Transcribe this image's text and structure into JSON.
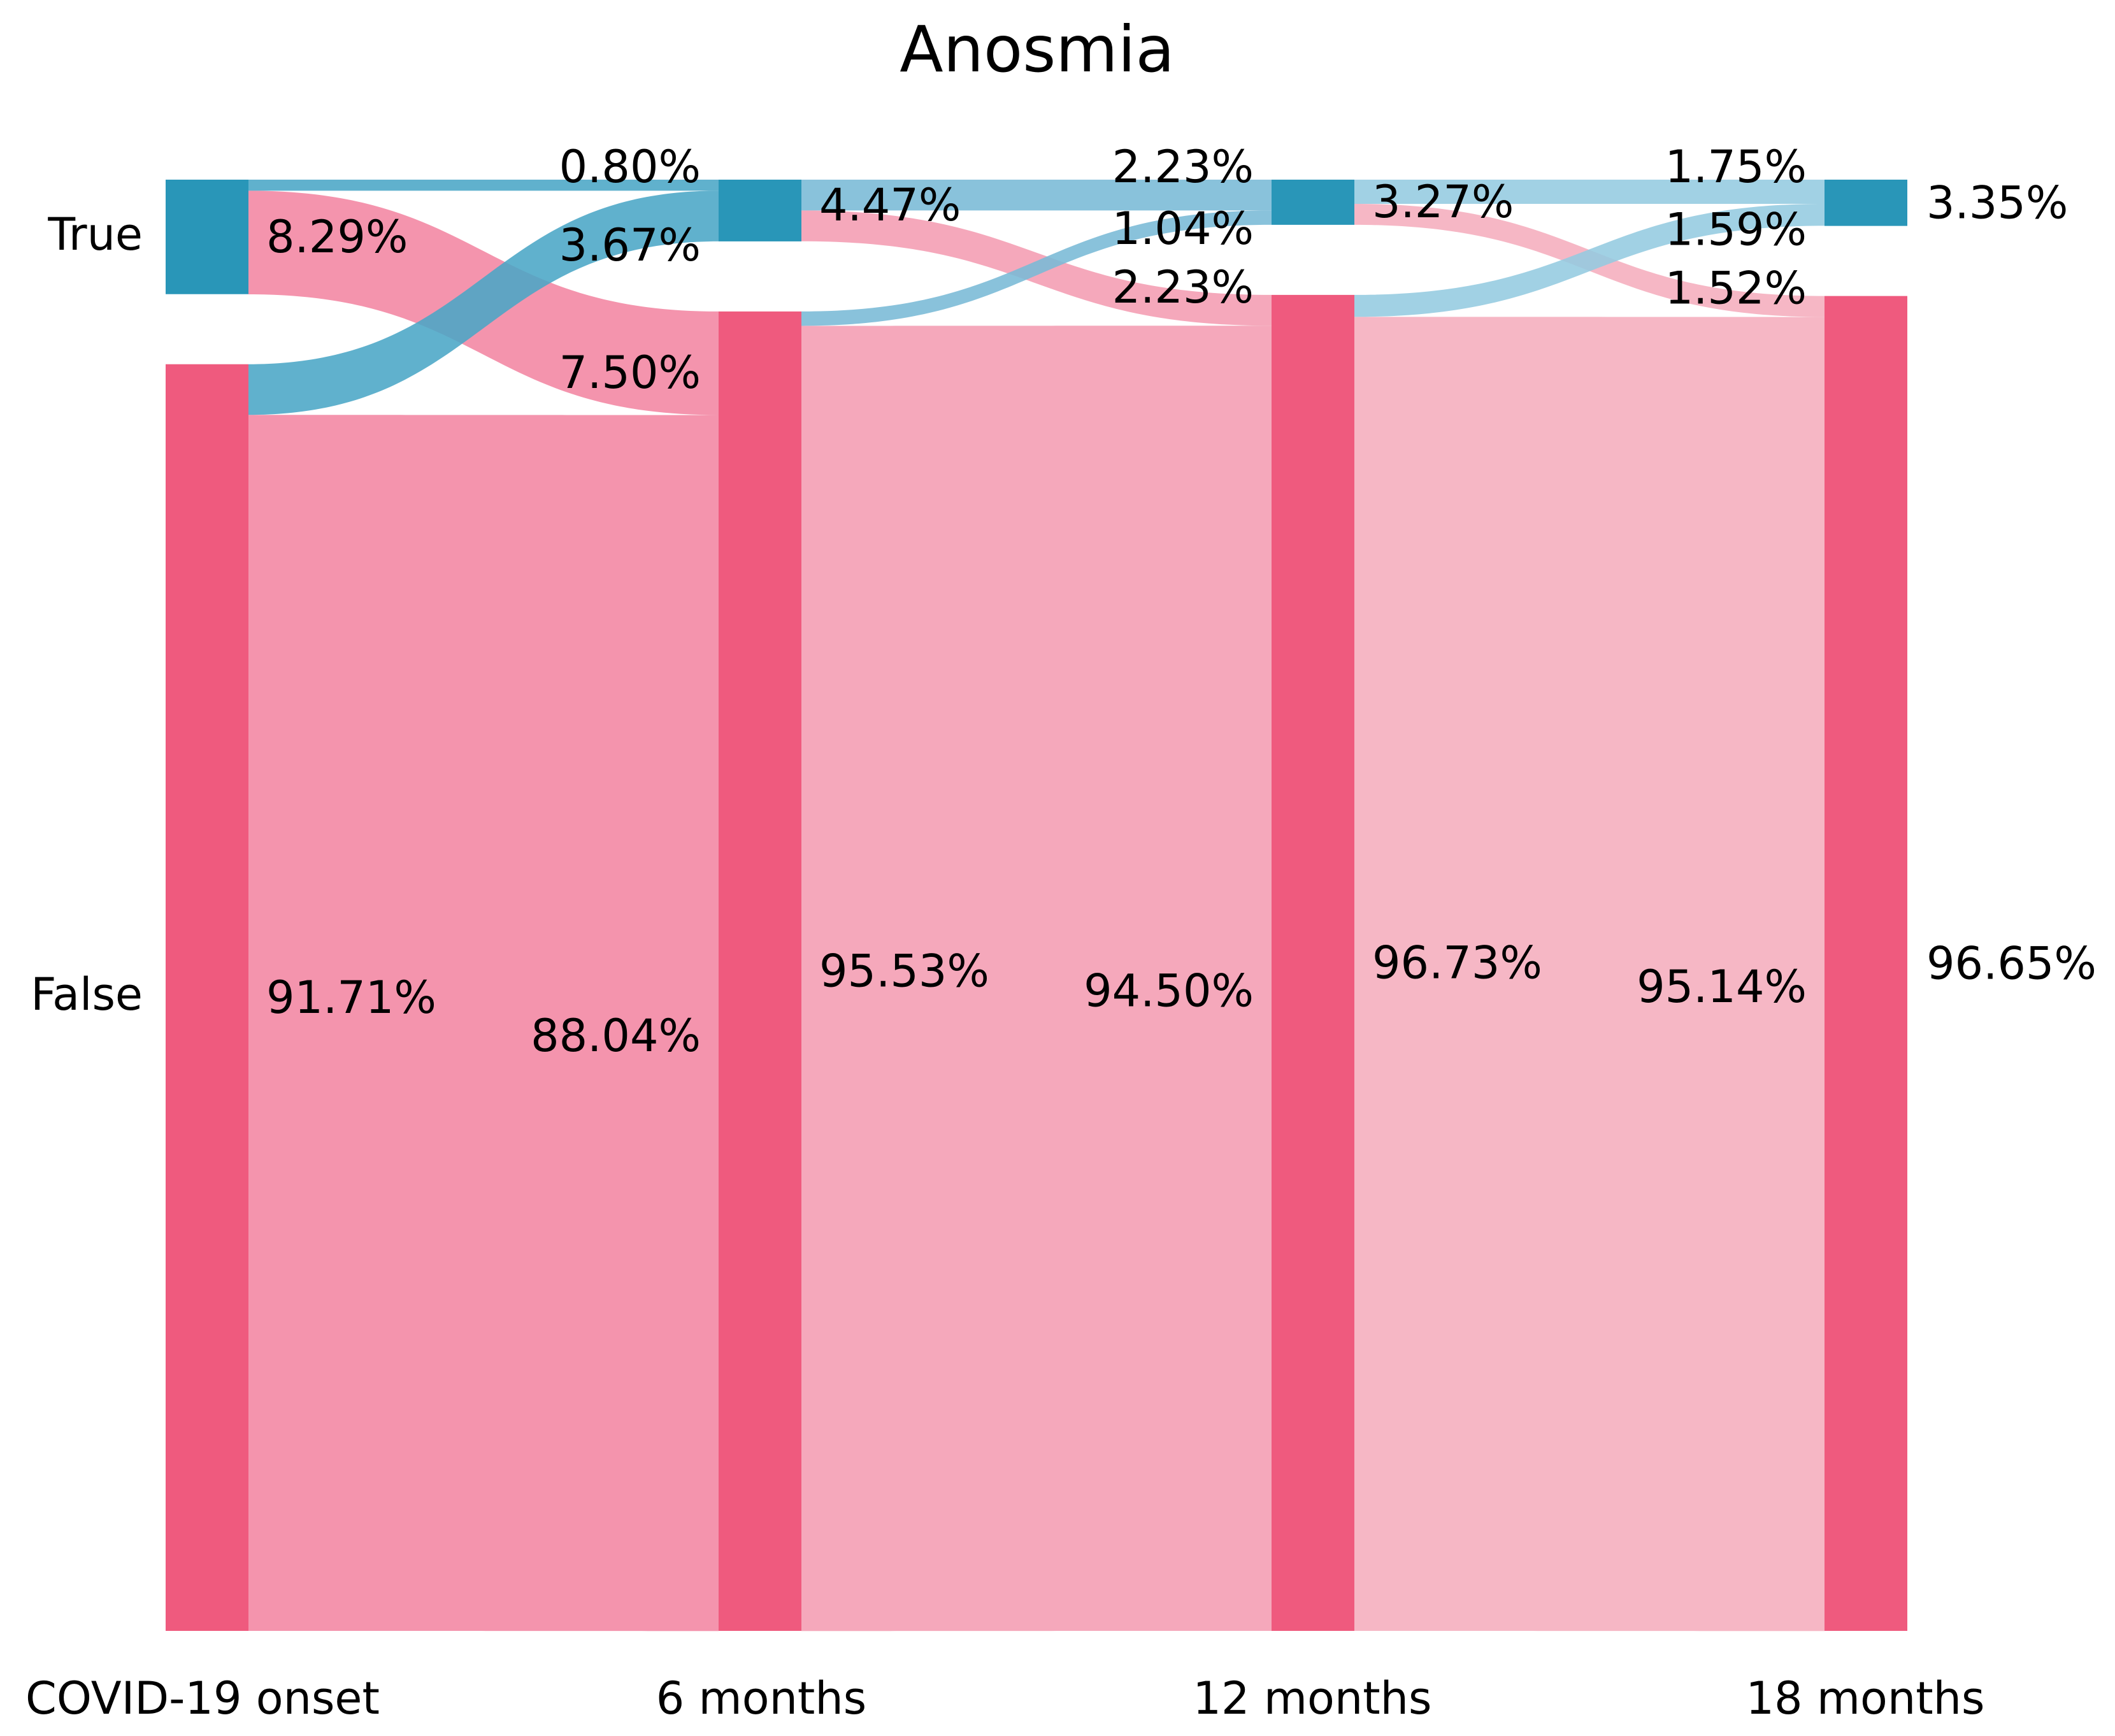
{
  "chart_data": {
    "type": "sankey",
    "title": "Anosmia",
    "categories": [
      "True",
      "False"
    ],
    "time_points": [
      "COVID-19 onset",
      "6 months",
      "12 months",
      "18 months"
    ],
    "colors": {
      "true_node": "#2996b8",
      "false_node": "#ef5a7e",
      "true_flow": [
        "#4aa6c6",
        "#79bad6",
        "#94cbe0"
      ],
      "false_flow": [
        "#f385a2",
        "#f49cb2",
        "#f5adbd"
      ]
    },
    "nodes": [
      {
        "time": "COVID-19 onset",
        "true_pct": 8.29,
        "false_pct": 91.71,
        "true_label": "",
        "false_label": ""
      },
      {
        "time": "6 months",
        "true_pct": 4.47,
        "false_pct": 95.53,
        "true_label": "",
        "false_label": ""
      },
      {
        "time": "12 months",
        "true_pct": 3.27,
        "false_pct": 96.73,
        "true_label": "",
        "false_label": ""
      },
      {
        "time": "18 months",
        "true_pct": 3.35,
        "false_pct": 96.65,
        "true_label": "3.35%",
        "false_label": "96.65%"
      }
    ],
    "transitions": [
      {
        "from": "COVID-19 onset",
        "to": "6 months",
        "true_to_true": 0.8,
        "true_to_false": 7.5,
        "false_to_true": 3.67,
        "false_to_false": 88.04,
        "labels": {
          "source_true": "8.29%",
          "source_false": "91.71%",
          "true_to_true": "0.80%",
          "false_to_true": "3.67%",
          "true_to_false": "7.50%",
          "false_to_false": "88.04%"
        }
      },
      {
        "from": "6 months",
        "to": "12 months",
        "true_to_true": 2.23,
        "true_to_false": 2.23,
        "false_to_true": 1.04,
        "false_to_false": 94.5,
        "labels": {
          "source_true": "4.47%",
          "source_false": "95.53%",
          "true_to_true": "2.23%",
          "false_to_true": "1.04%",
          "true_to_false": "2.23%",
          "false_to_false": "94.50%"
        }
      },
      {
        "from": "12 months",
        "to": "18 months",
        "true_to_true": 1.75,
        "true_to_false": 1.52,
        "false_to_true": 1.59,
        "false_to_false": 95.14,
        "labels": {
          "source_true": "3.27%",
          "source_false": "96.73%",
          "true_to_true": "1.75%",
          "false_to_true": "1.59%",
          "true_to_false": "1.52%",
          "false_to_false": "95.14%"
        }
      }
    ]
  }
}
